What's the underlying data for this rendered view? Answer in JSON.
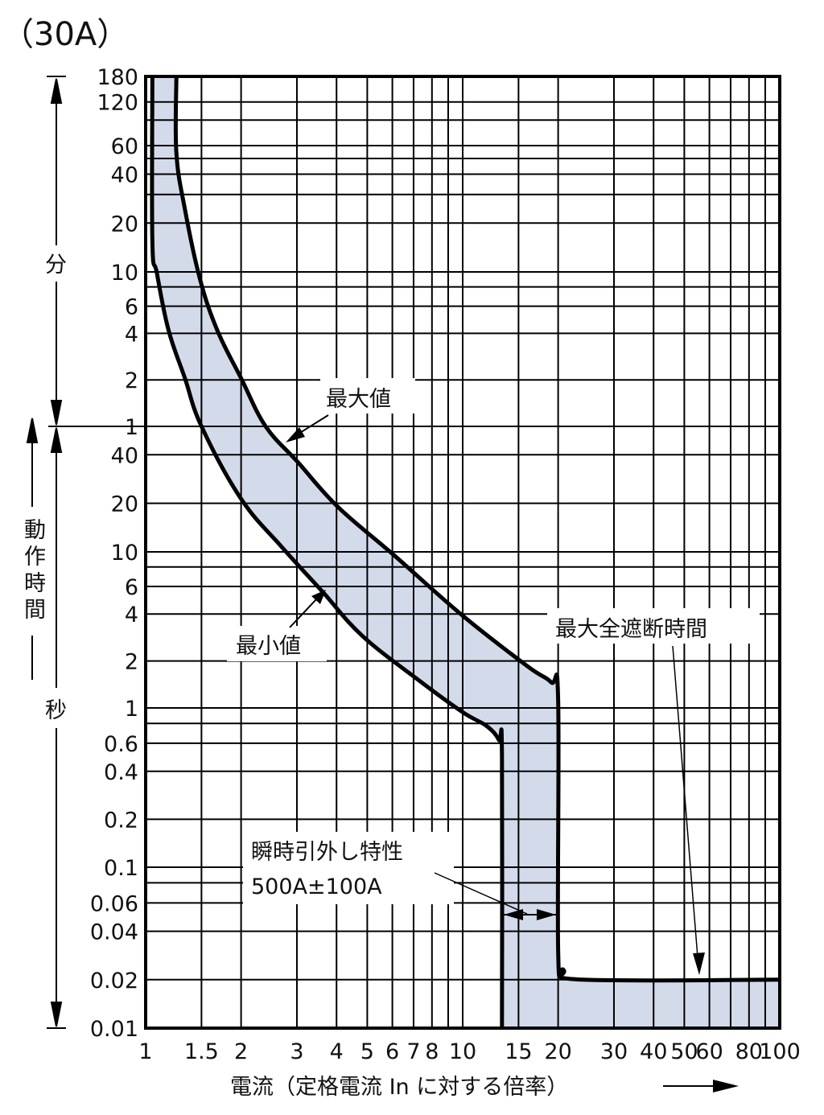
{
  "chart_data": {
    "type": "line",
    "title": "（30A）",
    "xlabel": "電流（定格電流 In に対する倍率）",
    "ylabel": "動作時間",
    "y_units": {
      "minutes": "分",
      "seconds": "秒"
    },
    "x_scale": "log",
    "y_scale": "log",
    "xlim": [
      1,
      100
    ],
    "ylim_seconds": [
      0.01,
      10800
    ],
    "grid": true,
    "band_fill_color": "#d3daea",
    "line_color": "#000000",
    "x_tick_labels": [
      "1",
      "1.5",
      "2",
      "3",
      "4",
      "5",
      "6",
      "7",
      "8",
      "10",
      "15",
      "20",
      "30",
      "40",
      "50",
      "60",
      "80",
      "100"
    ],
    "x_tick_values": [
      1,
      1.5,
      2,
      3,
      4,
      5,
      6,
      7,
      8,
      10,
      15,
      20,
      30,
      40,
      50,
      60,
      80,
      100
    ],
    "x_gridlines": [
      1.5,
      2,
      3,
      4,
      5,
      6,
      7,
      8,
      9,
      10,
      15,
      20,
      30,
      40,
      50,
      60,
      70,
      80,
      90
    ],
    "y_tick_minutes": {
      "labels": [
        "180",
        "120",
        "60",
        "40",
        "20",
        "10",
        "6",
        "4",
        "2",
        "1"
      ],
      "values": [
        180,
        120,
        60,
        40,
        20,
        10,
        6,
        4,
        2,
        1
      ]
    },
    "y_tick_seconds": {
      "labels": [
        "40",
        "20",
        "10",
        "6",
        "4",
        "2",
        "1",
        "0.6",
        "0.4",
        "0.2",
        "0.1",
        "0.06",
        "0.04",
        "0.02",
        "0.01"
      ],
      "values": [
        40,
        20,
        10,
        6,
        4,
        2,
        1,
        0.6,
        0.4,
        0.2,
        0.1,
        0.06,
        0.04,
        0.02,
        0.01
      ]
    },
    "y_gridlines_minutes": [
      120,
      90,
      60,
      50,
      40,
      30,
      20,
      10,
      8,
      6,
      4,
      2,
      1
    ],
    "y_gridlines_seconds": [
      40,
      20,
      10,
      8,
      6,
      4,
      2,
      1,
      0.8,
      0.6,
      0.4,
      0.2,
      0.1,
      0.08,
      0.06,
      0.04,
      0.02
    ],
    "series": [
      {
        "name": "最大値",
        "x": [
          1.25,
          1.25,
          1.33,
          1.48,
          1.68,
          2.0,
          2.39,
          3.02,
          4.04,
          6.08,
          10,
          16.0,
          19.0,
          20,
          20,
          20.8,
          24,
          100
        ],
        "y_seconds": [
          10800,
          3250,
          1460,
          550,
          253,
          123,
          60,
          36,
          19,
          9.5,
          3.9,
          1.85,
          1.46,
          1.13,
          0.031,
          0.023,
          0.02,
          0.02
        ]
      },
      {
        "name": "最小値",
        "x": [
          1.05,
          1.05,
          1.085,
          1.18,
          1.33,
          1.5,
          2.0,
          2.69,
          3.6,
          4.82,
          7.25,
          10,
          11.9,
          13.0,
          13.3,
          13.3
        ],
        "y_seconds": [
          10800,
          925,
          590,
          253,
          123,
          60,
          21.3,
          10.7,
          5.6,
          2.9,
          1.51,
          0.94,
          0.77,
          0.63,
          0.5,
          0.01
        ]
      }
    ],
    "annotations": {
      "max_value": "最大値",
      "min_value": "最小値",
      "max_total_clearing_time": "最大全遮断時間",
      "instantaneous_trip_line1": "瞬時引外し特性",
      "instantaneous_trip_line2": "500A±100A"
    }
  }
}
